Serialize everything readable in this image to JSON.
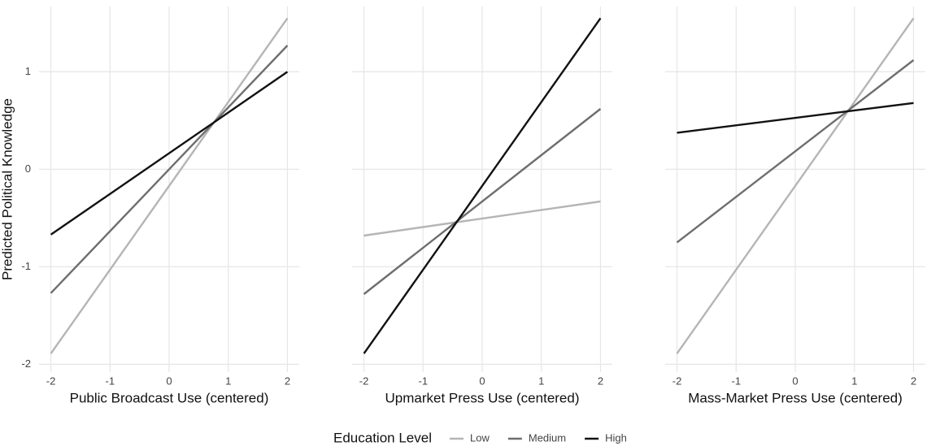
{
  "chart_data": [
    {
      "type": "line",
      "xlabel": "Public Broadcast Use (centered)",
      "ylabel": "Predicted Political Knowledge",
      "x": [
        -2,
        2
      ],
      "xlim": [
        -2.2,
        2.2
      ],
      "xticks": [
        -2,
        -1,
        0,
        1,
        2
      ],
      "ylim": [
        -2.08,
        1.67
      ],
      "yticks": [
        -2,
        -1,
        0,
        1
      ],
      "grid": true,
      "series": [
        {
          "name": "Low",
          "color": "#b5b5b5",
          "values": [
            -1.89,
            1.55
          ]
        },
        {
          "name": "Medium",
          "color": "#6e6e6e",
          "values": [
            -1.27,
            1.27
          ]
        },
        {
          "name": "High",
          "color": "#111111",
          "values": [
            -0.67,
            1.0
          ]
        }
      ]
    },
    {
      "type": "line",
      "xlabel": "Upmarket Press Use (centered)",
      "x": [
        -2,
        2
      ],
      "xlim": [
        -2.2,
        2.2
      ],
      "xticks": [
        -2,
        -1,
        0,
        1,
        2
      ],
      "grid": true,
      "series": [
        {
          "name": "Low",
          "color": "#b5b5b5",
          "values": [
            -0.68,
            -0.33
          ]
        },
        {
          "name": "Medium",
          "color": "#6e6e6e",
          "values": [
            -1.28,
            0.62
          ]
        },
        {
          "name": "High",
          "color": "#111111",
          "values": [
            -1.89,
            1.55
          ]
        }
      ]
    },
    {
      "type": "line",
      "xlabel": "Mass-Market Press Use (centered)",
      "x": [
        -2,
        2
      ],
      "xlim": [
        -2.2,
        2.2
      ],
      "xticks": [
        -2,
        -1,
        0,
        1,
        2
      ],
      "grid": true,
      "series": [
        {
          "name": "Low",
          "color": "#b5b5b5",
          "values": [
            -1.89,
            1.55
          ]
        },
        {
          "name": "Medium",
          "color": "#6e6e6e",
          "values": [
            -0.75,
            1.12
          ]
        },
        {
          "name": "High",
          "color": "#111111",
          "values": [
            0.375,
            0.68
          ]
        }
      ]
    }
  ],
  "legend": {
    "title": "Education Level",
    "position": "bottom"
  }
}
